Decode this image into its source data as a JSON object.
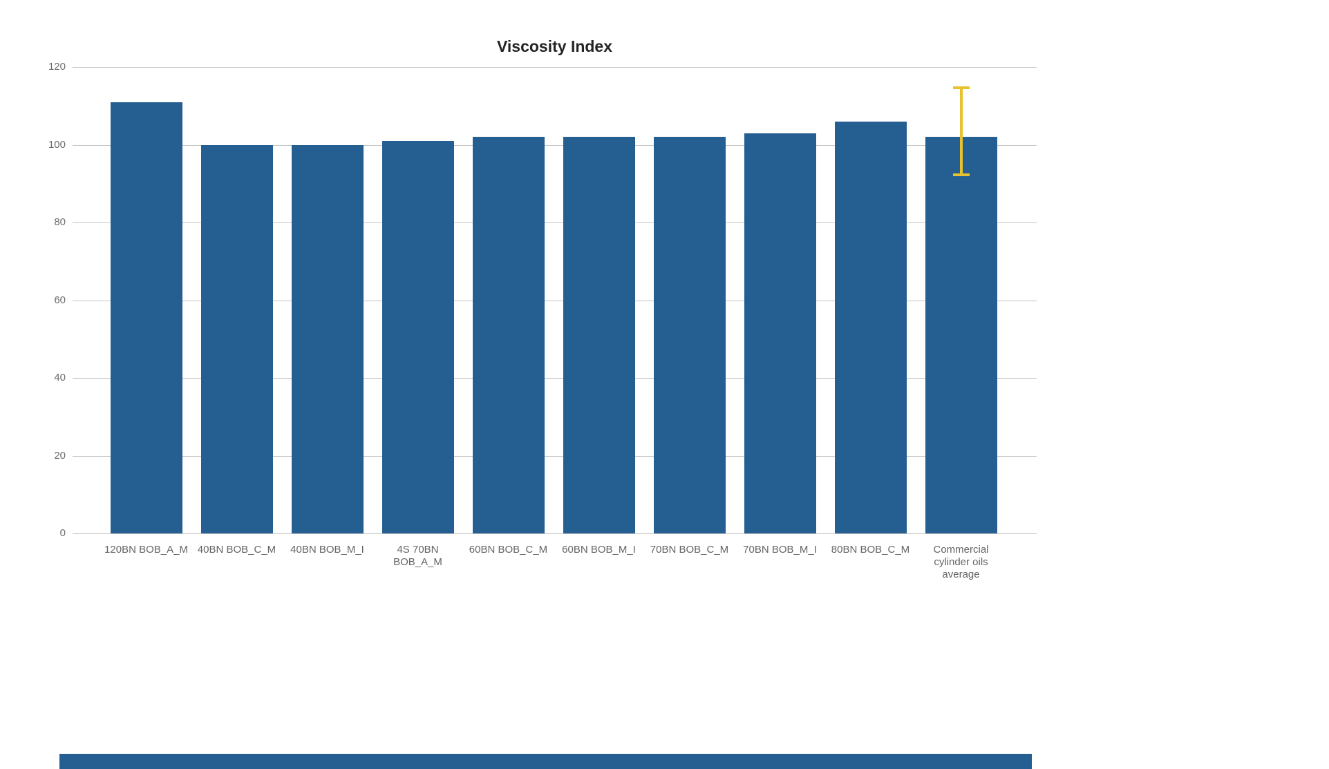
{
  "chart_data": {
    "type": "bar",
    "title": "Viscosity Index",
    "categories": [
      "120BN BOB_A_M",
      "40BN BOB_C_M",
      "40BN BOB_M_I",
      "4S 70BN BOB_A_M",
      "60BN BOB_C_M",
      "60BN BOB_M_I",
      "70BN BOB_C_M",
      "70BN BOB_M_I",
      "80BN BOB_C_M",
      "Commercial cylinder oils average"
    ],
    "values": [
      111,
      100,
      100,
      101,
      102,
      102,
      102,
      103,
      106,
      102
    ],
    "xlabel": "",
    "ylabel": "",
    "ylim": [
      0,
      120
    ],
    "yticks": [
      0,
      20,
      40,
      60,
      80,
      100,
      120
    ],
    "grid": true,
    "legend": "none",
    "bar_color": "#255E91",
    "error_bar": {
      "category": "Commercial cylinder oils average",
      "category_index": 9,
      "min": 92,
      "max": 115,
      "color": "#E8C22E"
    }
  },
  "page": {
    "bottom_partial_visual_color": "#255E91"
  }
}
